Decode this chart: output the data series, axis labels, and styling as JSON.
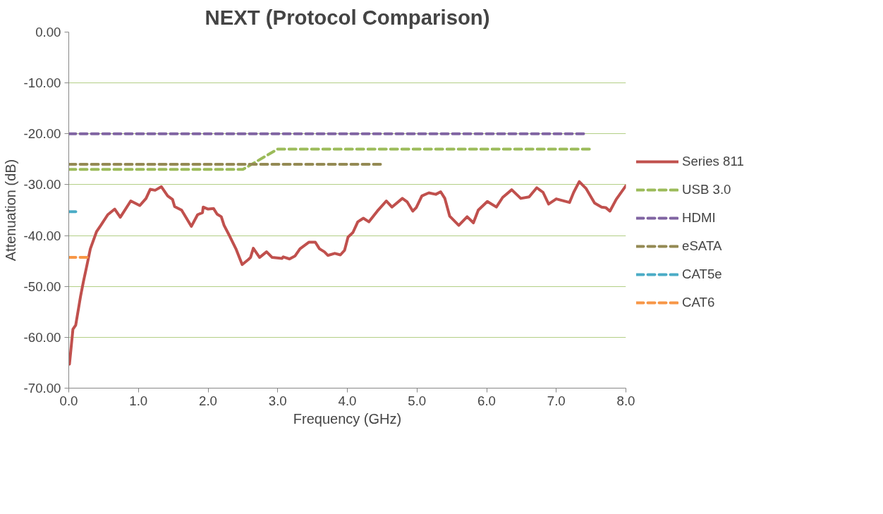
{
  "chart_data": {
    "type": "line",
    "title": "NEXT (Protocol Comparison)",
    "xlabel": "Frequency (GHz)",
    "ylabel": "Attenuation (dB)",
    "xlim": [
      0,
      8
    ],
    "ylim": [
      -70,
      0
    ],
    "xticks": [
      {
        "value": 0,
        "label": "0.0"
      },
      {
        "value": 1,
        "label": "1.0"
      },
      {
        "value": 2,
        "label": "2.0"
      },
      {
        "value": 3,
        "label": "3.0"
      },
      {
        "value": 4,
        "label": "4.0"
      },
      {
        "value": 5,
        "label": "5.0"
      },
      {
        "value": 6,
        "label": "6.0"
      },
      {
        "value": 7,
        "label": "7.0"
      },
      {
        "value": 8,
        "label": "8.0"
      }
    ],
    "yticks": [
      {
        "value": -70,
        "label": "-70.00"
      },
      {
        "value": -60,
        "label": "-60.00"
      },
      {
        "value": -50,
        "label": "-50.00"
      },
      {
        "value": -40,
        "label": "-40.00"
      },
      {
        "value": -30,
        "label": "-30.00"
      },
      {
        "value": -20,
        "label": "-20.00"
      },
      {
        "value": -10,
        "label": "-10.00"
      },
      {
        "value": 0,
        "label": "0.00"
      }
    ],
    "grid": "y",
    "legend": "right",
    "marker": "none",
    "series": [
      {
        "name": "Series 811",
        "color": "#c0504d",
        "line_style": "solid",
        "x": [
          0.01,
          0.06,
          0.1,
          0.17,
          0.21,
          0.26,
          0.31,
          0.4,
          0.46,
          0.56,
          0.66,
          0.74,
          0.89,
          1.02,
          1.11,
          1.17,
          1.24,
          1.33,
          1.42,
          1.49,
          1.52,
          1.62,
          1.76,
          1.85,
          1.92,
          1.93,
          2.0,
          2.08,
          2.13,
          2.19,
          2.23,
          2.31,
          2.4,
          2.49,
          2.58,
          2.61,
          2.65,
          2.74,
          2.84,
          2.92,
          3.06,
          3.08,
          3.17,
          3.25,
          3.32,
          3.45,
          3.54,
          3.6,
          3.67,
          3.72,
          3.82,
          3.9,
          3.96,
          4.01,
          4.08,
          4.15,
          4.23,
          4.31,
          4.43,
          4.56,
          4.64,
          4.79,
          4.86,
          4.94,
          4.99,
          5.07,
          5.17,
          5.27,
          5.34,
          5.4,
          5.47,
          5.6,
          5.72,
          5.81,
          5.88,
          6.01,
          6.14,
          6.23,
          6.36,
          6.49,
          6.61,
          6.72,
          6.81,
          6.89,
          7.0,
          7.19,
          7.25,
          7.33,
          7.43,
          7.55,
          7.65,
          7.71,
          7.77,
          7.86,
          8.0
        ],
        "values": [
          -65.3,
          -58.4,
          -57.6,
          -51.9,
          -49.1,
          -45.9,
          -42.6,
          -39.2,
          -38.0,
          -35.9,
          -34.8,
          -36.4,
          -33.2,
          -34.1,
          -32.7,
          -30.9,
          -31.1,
          -30.4,
          -32.2,
          -32.9,
          -34.3,
          -35.0,
          -38.2,
          -35.9,
          -35.5,
          -34.4,
          -34.8,
          -34.7,
          -35.8,
          -36.3,
          -38.0,
          -40.1,
          -42.6,
          -45.7,
          -44.7,
          -44.3,
          -42.5,
          -44.3,
          -43.2,
          -44.3,
          -44.5,
          -44.2,
          -44.6,
          -44.0,
          -42.6,
          -41.3,
          -41.3,
          -42.6,
          -43.2,
          -43.9,
          -43.5,
          -43.8,
          -42.9,
          -40.3,
          -39.4,
          -37.3,
          -36.6,
          -37.3,
          -35.2,
          -33.2,
          -34.4,
          -32.7,
          -33.4,
          -35.2,
          -34.5,
          -32.2,
          -31.6,
          -31.9,
          -31.4,
          -32.7,
          -36.2,
          -38.0,
          -36.3,
          -37.5,
          -35.0,
          -33.3,
          -34.4,
          -32.5,
          -31.0,
          -32.7,
          -32.4,
          -30.6,
          -31.5,
          -33.8,
          -32.8,
          -33.5,
          -31.5,
          -29.4,
          -30.8,
          -33.6,
          -34.4,
          -34.5,
          -35.2,
          -32.9,
          -30.2
        ]
      },
      {
        "name": "USB 3.0",
        "color": "#9bbb59",
        "line_style": "dashed",
        "x": [
          0.0,
          2.5,
          3.0,
          7.5
        ],
        "values": [
          -27,
          -27,
          -23,
          -23
        ]
      },
      {
        "name": "HDMI",
        "color": "#8064a2",
        "line_style": "dashed",
        "x": [
          0.0,
          7.43
        ],
        "values": [
          -20,
          -20
        ]
      },
      {
        "name": "eSATA",
        "color": "#948a54",
        "line_style": "dashed",
        "x": [
          0.0,
          4.48
        ],
        "values": [
          -26,
          -26
        ]
      },
      {
        "name": "CAT5e",
        "color": "#4bacc6",
        "line_style": "dashed",
        "x": [
          0.0,
          0.1
        ],
        "values": [
          -35.3,
          -35.3
        ]
      },
      {
        "name": "CAT6",
        "color": "#f79646",
        "line_style": "dashed",
        "x": [
          0.0,
          0.3
        ],
        "values": [
          -44.3,
          -44.3
        ]
      }
    ]
  }
}
